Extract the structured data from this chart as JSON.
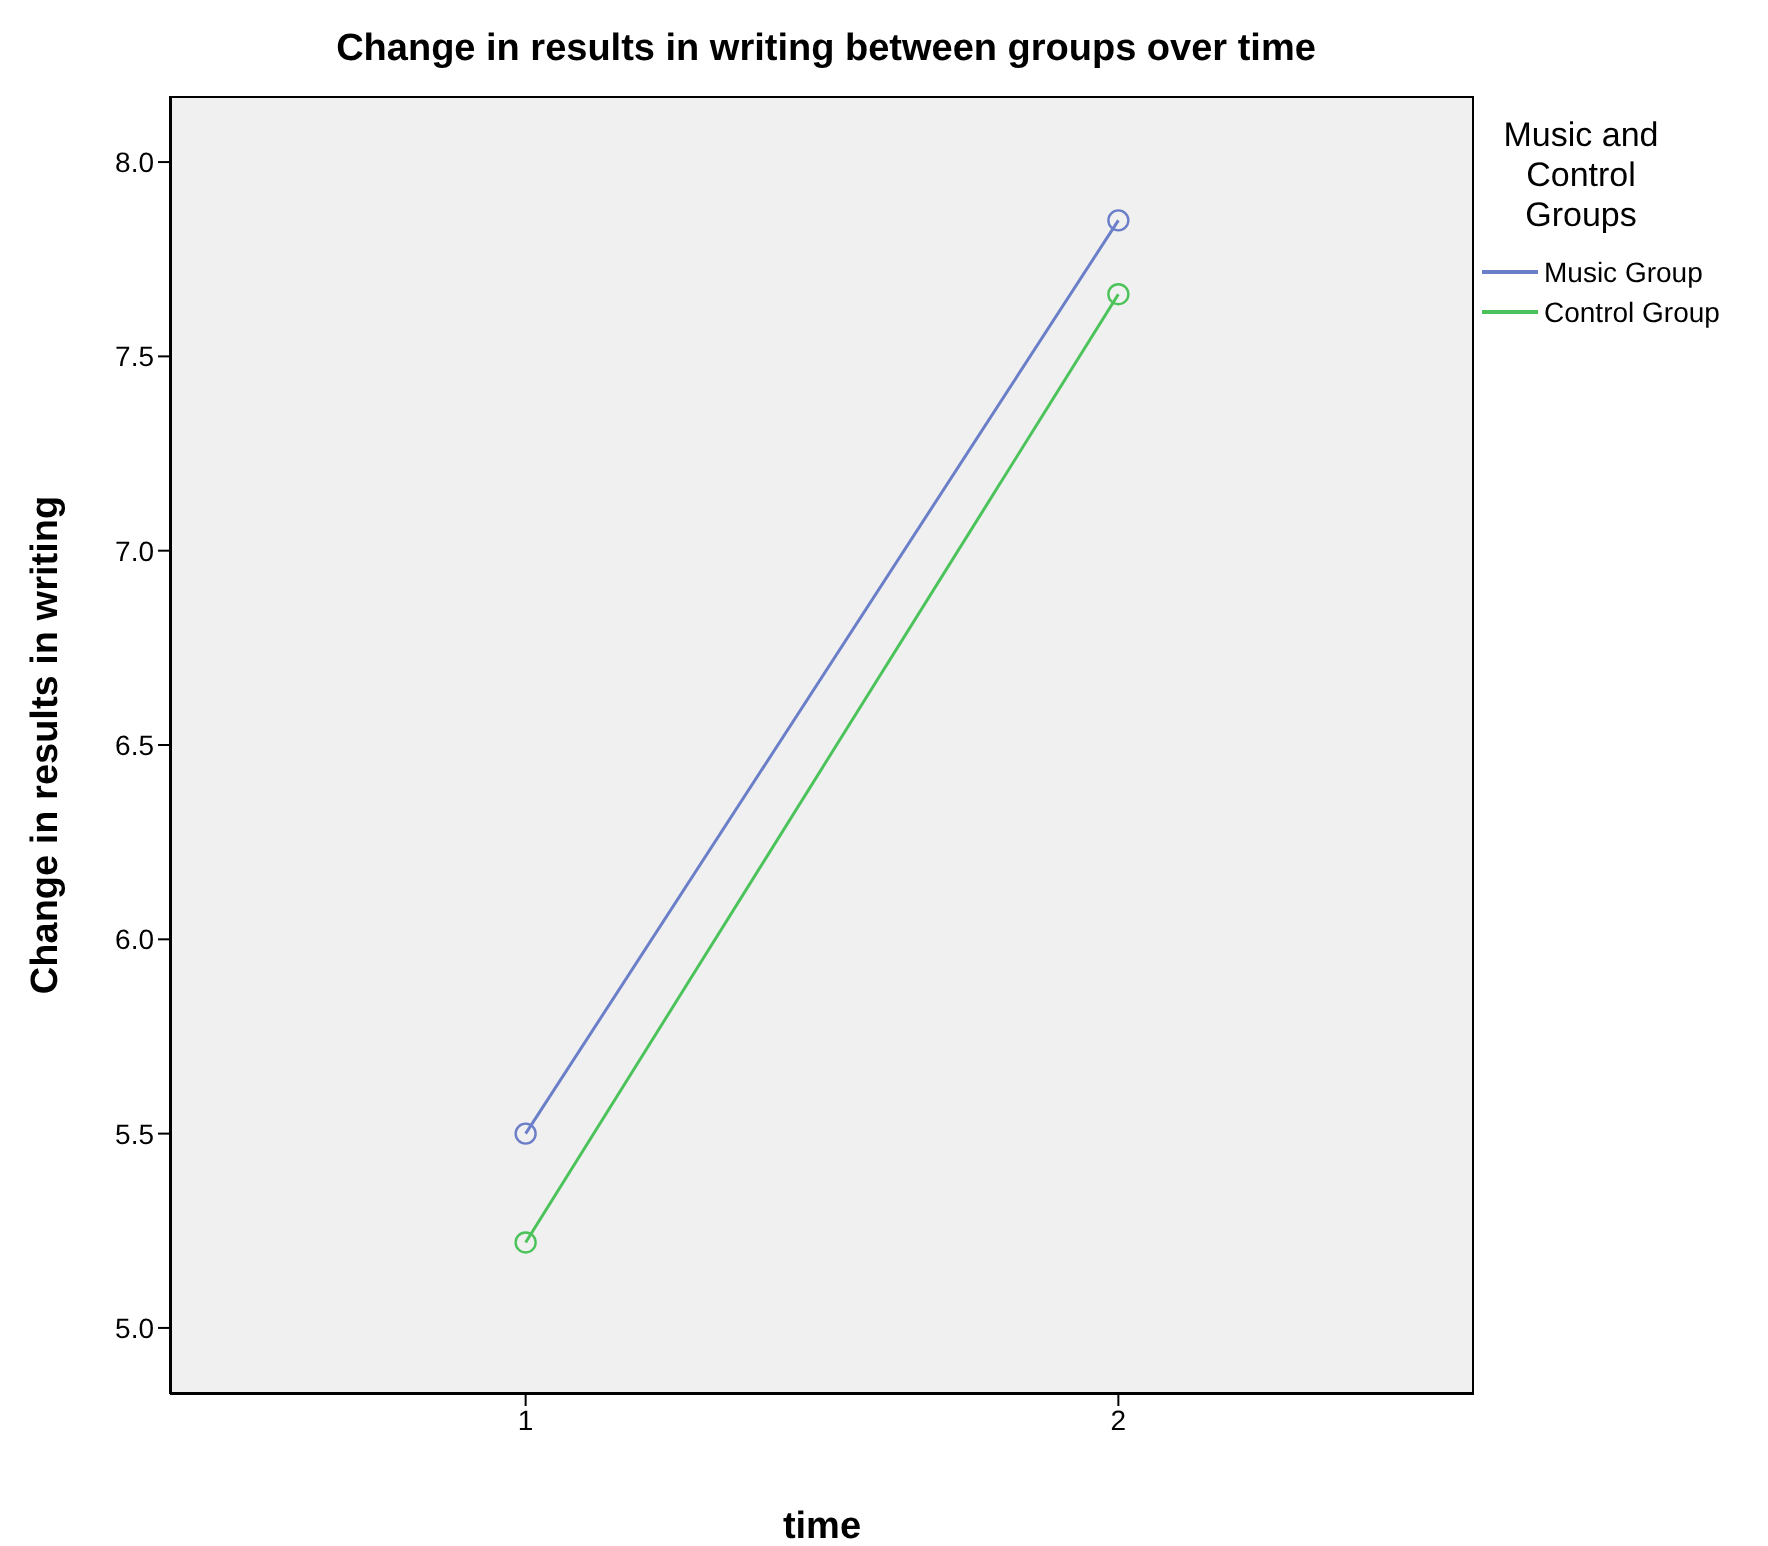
{
  "chart_data": {
    "type": "line",
    "title": "Change in results in writing between groups over time",
    "xlabel": "time",
    "ylabel": "Change in results in writing",
    "legend_title": "Music and Control Groups",
    "categories": [
      "1",
      "2"
    ],
    "series": [
      {
        "name": "Music Group",
        "color": "#6b7fc9",
        "values": [
          5.5,
          7.85
        ]
      },
      {
        "name": "Control Group",
        "color": "#4cc35a",
        "values": [
          5.22,
          7.66
        ]
      }
    ],
    "ylim": [
      4.83,
      8.17
    ],
    "yticks": [
      {
        "value": 5,
        "label": "5.0"
      },
      {
        "value": 5.5,
        "label": "5.5"
      },
      {
        "value": 6,
        "label": "6.0"
      },
      {
        "value": 6.5,
        "label": "6.5"
      },
      {
        "value": 7,
        "label": "7.0"
      },
      {
        "value": 7.5,
        "label": "7.5"
      },
      {
        "value": 8,
        "label": "8.0"
      }
    ],
    "marker": "circle",
    "legend": "top right",
    "grid": false
  }
}
